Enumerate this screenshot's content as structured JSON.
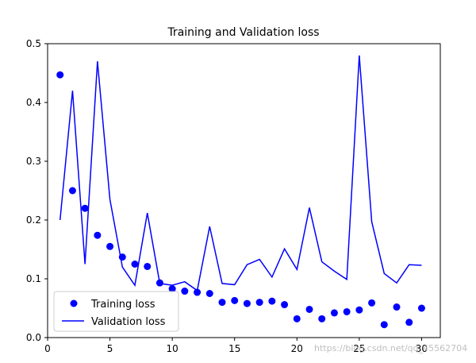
{
  "chart_data": {
    "type": "scatter",
    "title": "Training and Validation loss",
    "xlabel": "",
    "ylabel": "",
    "xlim": [
      0,
      31.5
    ],
    "ylim": [
      0,
      0.5
    ],
    "xticks": [
      0,
      5,
      10,
      15,
      20,
      25,
      30
    ],
    "yticks": [
      0.0,
      0.1,
      0.2,
      0.3,
      0.4,
      0.5
    ],
    "xtick_labels": [
      "0",
      "5",
      "10",
      "15",
      "20",
      "25",
      "30"
    ],
    "ytick_labels": [
      "0.0",
      "0.1",
      "0.2",
      "0.3",
      "0.4",
      "0.5"
    ],
    "grid": false,
    "legend_position": "lower-left",
    "x": [
      1,
      2,
      3,
      4,
      5,
      6,
      7,
      8,
      9,
      10,
      11,
      12,
      13,
      14,
      15,
      16,
      17,
      18,
      19,
      20,
      21,
      22,
      23,
      24,
      25,
      26,
      27,
      28,
      29,
      30
    ],
    "series": [
      {
        "name": "Training loss",
        "style": "points",
        "color": "#0000ff",
        "values": [
          0.447,
          0.25,
          0.22,
          0.174,
          0.155,
          0.137,
          0.125,
          0.121,
          0.093,
          0.083,
          0.079,
          0.077,
          0.075,
          0.06,
          0.063,
          0.058,
          0.06,
          0.062,
          0.056,
          0.032,
          0.048,
          0.032,
          0.042,
          0.044,
          0.047,
          0.059,
          0.022,
          0.052,
          0.026,
          0.05
        ]
      },
      {
        "name": "Validation loss",
        "style": "line",
        "color": "#0000ff",
        "values": [
          0.2,
          0.42,
          0.125,
          0.47,
          0.235,
          0.12,
          0.089,
          0.212,
          0.092,
          0.089,
          0.095,
          0.08,
          0.189,
          0.092,
          0.09,
          0.124,
          0.133,
          0.103,
          0.151,
          0.116,
          0.221,
          0.129,
          0.113,
          0.099,
          0.48,
          0.197,
          0.109,
          0.093,
          0.124,
          0.123
        ]
      }
    ]
  },
  "watermark": "https://blog.csdn.net/qq_45562704"
}
